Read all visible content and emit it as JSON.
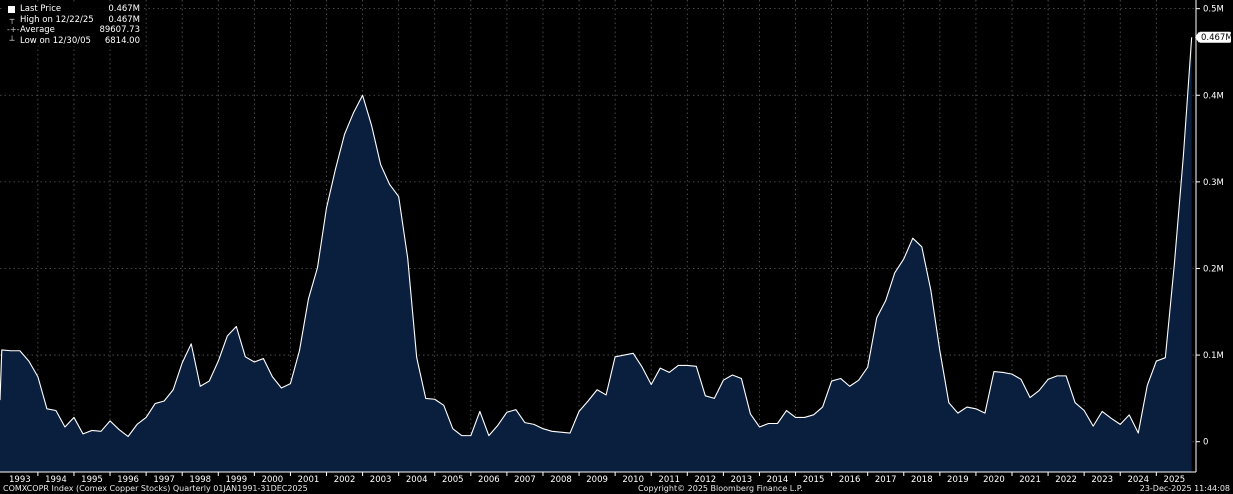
{
  "legend": {
    "last_label": "Last Price",
    "last_value": "0.467M",
    "high_label": "High on 12/22/25",
    "high_value": "0.467M",
    "avg_label": "Average",
    "avg_value": "89607.73",
    "low_label": "Low on 12/30/05",
    "low_value": "6814.00"
  },
  "footer": {
    "left": "COMXCOPR Index (Comex Copper Stocks) Quarterly 01JAN1991-31DEC2025",
    "center": "Copyright© 2025 Bloomberg Finance L.P.",
    "right": "23-Dec-2025 11:44:08"
  },
  "colors": {
    "background": "#000000",
    "area_fill": "#0a1f3d",
    "line": "#ffffff",
    "grid": "#5a5a5a"
  },
  "chart_data": {
    "type": "area",
    "title": "",
    "xlabel": "",
    "ylabel": "",
    "grid": true,
    "legend_position": "top-left",
    "y_axis_position": "right",
    "x_range": [
      1992.95,
      2026.1
    ],
    "ylim": [
      -35000,
      510000
    ],
    "y_ticks": [
      0,
      100000,
      200000,
      300000,
      400000,
      500000
    ],
    "y_tick_labels": [
      "0",
      "0.1M",
      "0.2M",
      "0.3M",
      "0.4M",
      "0.5M"
    ],
    "x_tick_labels": [
      "1993",
      "1994",
      "1995",
      "1996",
      "1997",
      "1998",
      "1999",
      "2000",
      "2001",
      "2002",
      "2003",
      "2004",
      "2005",
      "2006",
      "2007",
      "2008",
      "2009",
      "2010",
      "2011",
      "2012",
      "2013",
      "2014",
      "2015",
      "2016",
      "2017",
      "2018",
      "2019",
      "2020",
      "2021",
      "2022",
      "2023",
      "2024",
      "2025"
    ],
    "last_value_label": "0.467M",
    "series": [
      {
        "name": "Last Price",
        "x": [
          1992.95,
          1993.0,
          1993.25,
          1993.5,
          1993.75,
          1994.0,
          1994.25,
          1994.5,
          1994.75,
          1995.0,
          1995.25,
          1995.5,
          1995.75,
          1996.0,
          1996.25,
          1996.5,
          1996.75,
          1997.0,
          1997.25,
          1997.5,
          1997.75,
          1998.0,
          1998.25,
          1998.5,
          1998.75,
          1999.0,
          1999.25,
          1999.5,
          1999.75,
          2000.0,
          2000.25,
          2000.5,
          2000.75,
          2001.0,
          2001.25,
          2001.5,
          2001.75,
          2002.0,
          2002.25,
          2002.5,
          2002.75,
          2003.0,
          2003.25,
          2003.5,
          2003.75,
          2004.0,
          2004.25,
          2004.5,
          2004.75,
          2005.0,
          2005.25,
          2005.5,
          2005.75,
          2006.0,
          2006.25,
          2006.5,
          2006.75,
          2007.0,
          2007.25,
          2007.5,
          2007.75,
          2008.0,
          2008.25,
          2008.5,
          2008.75,
          2009.0,
          2009.25,
          2009.5,
          2009.75,
          2010.0,
          2010.25,
          2010.5,
          2010.75,
          2011.0,
          2011.25,
          2011.5,
          2011.75,
          2012.0,
          2012.25,
          2012.5,
          2012.75,
          2013.0,
          2013.25,
          2013.5,
          2013.75,
          2014.0,
          2014.25,
          2014.5,
          2014.75,
          2015.0,
          2015.25,
          2015.5,
          2015.75,
          2016.0,
          2016.25,
          2016.5,
          2016.75,
          2017.0,
          2017.25,
          2017.5,
          2017.75,
          2018.0,
          2018.25,
          2018.5,
          2018.75,
          2019.0,
          2019.25,
          2019.5,
          2019.75,
          2020.0,
          2020.25,
          2020.5,
          2020.75,
          2021.0,
          2021.25,
          2021.5,
          2021.75,
          2022.0,
          2022.25,
          2022.5,
          2022.75,
          2023.0,
          2023.25,
          2023.5,
          2023.75,
          2024.0,
          2024.25,
          2024.5,
          2024.75,
          2025.0,
          2025.25,
          2025.5,
          2025.75,
          2025.98
        ],
        "values": [
          48000,
          106000,
          105000,
          105000,
          93000,
          75000,
          38000,
          36000,
          17000,
          28000,
          9000,
          13000,
          12000,
          24000,
          14000,
          6000,
          20000,
          28000,
          44000,
          47000,
          60000,
          91000,
          113000,
          64000,
          70000,
          93000,
          122000,
          133000,
          98000,
          92000,
          96000,
          75000,
          62000,
          67000,
          105000,
          165000,
          201000,
          270000,
          315000,
          355000,
          380000,
          400000,
          365000,
          320000,
          297000,
          283000,
          212000,
          97000,
          50000,
          49000,
          42000,
          15000,
          7000,
          7000,
          35000,
          7000,
          19000,
          34000,
          37000,
          22000,
          20000,
          15000,
          12000,
          11000,
          10000,
          35000,
          47000,
          60000,
          54000,
          98000,
          100000,
          102000,
          86000,
          66000,
          85000,
          80000,
          88000,
          88000,
          87000,
          53000,
          50000,
          71000,
          77000,
          73000,
          32000,
          17000,
          21000,
          21000,
          36000,
          28000,
          28000,
          31000,
          40000,
          70000,
          73000,
          64000,
          71000,
          86000,
          143000,
          163000,
          195000,
          211000,
          235000,
          225000,
          175000,
          105000,
          45000,
          33000,
          40000,
          38000,
          33000,
          81000,
          80000,
          78000,
          72000,
          51000,
          59000,
          72000,
          76000,
          76000,
          45000,
          36000,
          18000,
          35000,
          27000,
          20000,
          31000,
          10000,
          65000,
          93000,
          97000,
          205000,
          330000,
          467000
        ]
      }
    ]
  }
}
